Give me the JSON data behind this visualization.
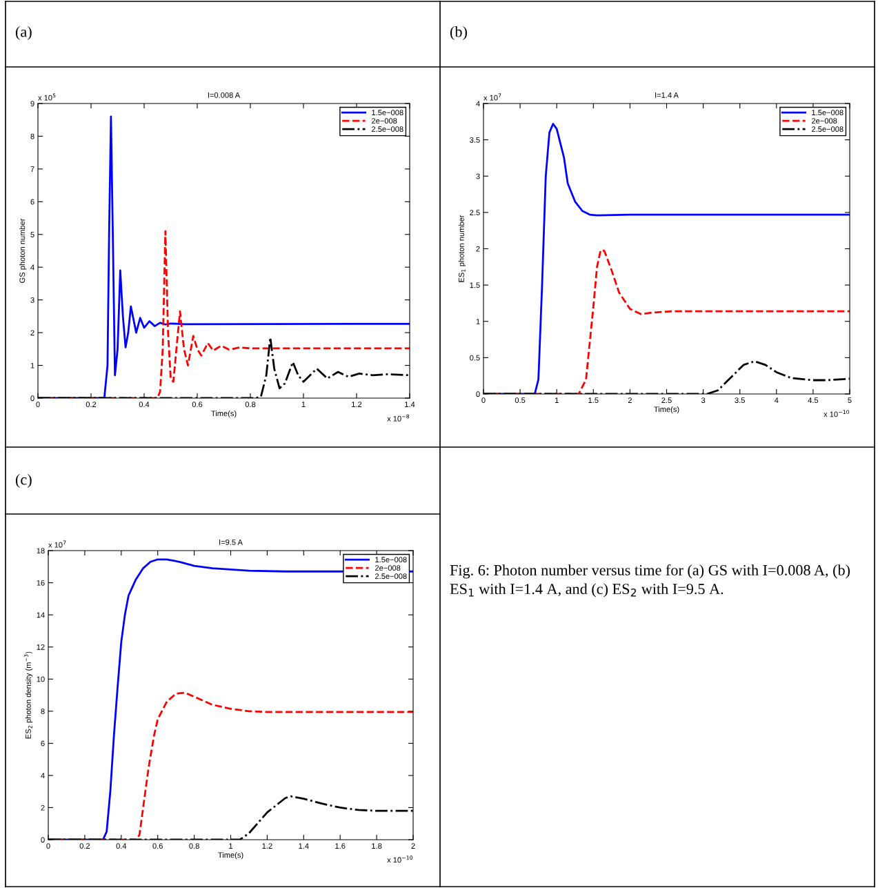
{
  "chart_data": [
    {
      "type": "line",
      "title": "I=0.008 A",
      "xlabel": "Time(s)",
      "ylabel": "GS photon number",
      "annotations": [
        "(a)",
        "x 10$^{5}$",
        "x 10$^{−8}$"
      ],
      "xlim": [
        0,
        1.4
      ],
      "xticks": [
        0,
        0.2,
        0.4,
        0.6,
        0.8,
        1,
        1.2,
        1.4
      ],
      "ylim": [
        0,
        9
      ],
      "yticks": [
        0,
        1,
        2,
        3,
        4,
        5,
        6,
        7,
        8,
        9
      ],
      "grid": false,
      "legend": "top right",
      "series": [
        {
          "name": "1.5e−008",
          "color": "#0000ff",
          "line_style": "solid",
          "x": [
            0,
            0.25,
            0.262,
            0.268,
            0.275,
            0.282,
            0.29,
            0.3,
            0.31,
            0.32,
            0.33,
            0.34,
            0.35,
            0.36,
            0.37,
            0.385,
            0.4,
            0.42,
            0.44,
            0.46,
            0.48,
            0.5,
            0.55,
            1.4
          ],
          "values": [
            0,
            0,
            1.0,
            5,
            8.6,
            5,
            0.7,
            1.5,
            3.9,
            2.5,
            1.55,
            2.0,
            2.8,
            2.4,
            2.0,
            2.45,
            2.15,
            2.35,
            2.2,
            2.3,
            2.25,
            2.28,
            2.26,
            2.27
          ]
        },
        {
          "name": "2e−008",
          "color": "#ff0000",
          "line_style": "dashed",
          "x": [
            0,
            0.45,
            0.46,
            0.47,
            0.48,
            0.49,
            0.5,
            0.51,
            0.525,
            0.535,
            0.55,
            0.565,
            0.585,
            0.6,
            0.615,
            0.64,
            0.66,
            0.69,
            0.72,
            0.76,
            0.8,
            1.4
          ],
          "values": [
            0,
            0,
            0.2,
            1.5,
            5.1,
            2.0,
            0.6,
            0.5,
            1.8,
            2.65,
            1.5,
            1.0,
            1.9,
            1.5,
            1.3,
            1.68,
            1.45,
            1.6,
            1.48,
            1.55,
            1.52,
            1.52
          ]
        },
        {
          "name": "2.5e−008",
          "color": "#000000",
          "line_style": "dashdot",
          "x": [
            0,
            0.82,
            0.84,
            0.86,
            0.875,
            0.89,
            0.91,
            0.93,
            0.96,
            0.98,
            1.0,
            1.05,
            1.09,
            1.13,
            1.17,
            1.21,
            1.26,
            1.32,
            1.4
          ],
          "values": [
            0,
            0,
            0.05,
            0.7,
            1.85,
            0.9,
            0.3,
            0.45,
            1.1,
            0.7,
            0.5,
            0.9,
            0.6,
            0.8,
            0.65,
            0.75,
            0.7,
            0.73,
            0.7
          ]
        }
      ]
    },
    {
      "type": "line",
      "title": "I=1.4 A",
      "xlabel": "Time(s)",
      "ylabel": "ES$_{1}$ photon number",
      "annotations": [
        "(b)",
        "x 10$^{7}$",
        "x 10$^{−10}$"
      ],
      "xlim": [
        0,
        5
      ],
      "xticks": [
        0,
        0.5,
        1,
        1.5,
        2,
        2.5,
        3,
        3.5,
        4,
        4.5,
        5
      ],
      "ylim": [
        0,
        4
      ],
      "yticks": [
        0,
        0.5,
        1,
        1.5,
        2,
        2.5,
        3,
        3.5,
        4
      ],
      "grid": false,
      "legend": "top right",
      "series": [
        {
          "name": "1.5e−008",
          "color": "#0000ff",
          "line_style": "solid",
          "x": [
            0,
            0.7,
            0.75,
            0.8,
            0.85,
            0.9,
            0.95,
            1.0,
            1.1,
            1.15,
            1.25,
            1.35,
            1.45,
            1.55,
            2.0,
            5
          ],
          "values": [
            0,
            0,
            0.2,
            1.5,
            3.0,
            3.6,
            3.72,
            3.65,
            3.25,
            2.9,
            2.65,
            2.52,
            2.47,
            2.46,
            2.47,
            2.47
          ]
        },
        {
          "name": "2e−008",
          "color": "#ff0000",
          "line_style": "dashed",
          "x": [
            0,
            1.3,
            1.4,
            1.5,
            1.55,
            1.6,
            1.65,
            1.75,
            1.85,
            2.0,
            2.15,
            2.3,
            2.6,
            5
          ],
          "values": [
            0,
            0,
            0.2,
            1.2,
            1.75,
            1.98,
            1.97,
            1.7,
            1.4,
            1.17,
            1.1,
            1.12,
            1.14,
            1.14
          ]
        },
        {
          "name": "2.5e−008",
          "color": "#000000",
          "line_style": "dashdot",
          "x": [
            0,
            3.05,
            3.2,
            3.4,
            3.55,
            3.7,
            3.85,
            4.0,
            4.2,
            4.5,
            4.7,
            5
          ],
          "values": [
            0,
            0,
            0.05,
            0.25,
            0.4,
            0.45,
            0.4,
            0.3,
            0.22,
            0.19,
            0.19,
            0.21
          ]
        }
      ]
    },
    {
      "type": "line",
      "title": "I=9.5 A",
      "xlabel": "Time(s)",
      "ylabel": "ES$_{2}$ photon density (m$^{−3}$)",
      "annotations": [
        "(c)",
        "x 10$^{7}$",
        "x 10$^{−10}$"
      ],
      "xlim": [
        0,
        2
      ],
      "xticks": [
        0,
        0.2,
        0.4,
        0.6,
        0.8,
        1,
        1.2,
        1.4,
        1.6,
        1.8,
        2
      ],
      "ylim": [
        0,
        18
      ],
      "yticks": [
        0,
        2,
        4,
        6,
        8,
        10,
        12,
        14,
        16,
        18
      ],
      "grid": false,
      "legend": "top right",
      "series": [
        {
          "name": "1.5e−008",
          "color": "#0000ff",
          "line_style": "solid",
          "x": [
            0,
            0.3,
            0.32,
            0.34,
            0.36,
            0.38,
            0.4,
            0.42,
            0.44,
            0.48,
            0.52,
            0.56,
            0.6,
            0.65,
            0.72,
            0.8,
            0.9,
            1.1,
            1.3,
            2
          ],
          "values": [
            0,
            0,
            0.5,
            3,
            6.5,
            9.5,
            12.3,
            14,
            15.2,
            16.2,
            16.9,
            17.3,
            17.45,
            17.45,
            17.3,
            17.05,
            16.9,
            16.75,
            16.7,
            16.7
          ]
        },
        {
          "name": "2e−008",
          "color": "#ff0000",
          "line_style": "dashed",
          "x": [
            0,
            0.48,
            0.5,
            0.52,
            0.55,
            0.58,
            0.6,
            0.65,
            0.7,
            0.75,
            0.8,
            0.9,
            1.0,
            1.1,
            1.2,
            2
          ],
          "values": [
            0,
            0,
            0.3,
            2.0,
            4.5,
            6.5,
            7.5,
            8.6,
            9.1,
            9.15,
            8.9,
            8.4,
            8.15,
            8.0,
            7.95,
            7.95
          ]
        },
        {
          "name": "2.5e−008",
          "color": "#000000",
          "line_style": "dashdot",
          "x": [
            0,
            1.05,
            1.1,
            1.2,
            1.3,
            1.33,
            1.4,
            1.5,
            1.6,
            1.7,
            1.8,
            2
          ],
          "values": [
            0,
            0,
            0.4,
            1.7,
            2.6,
            2.7,
            2.55,
            2.25,
            2.0,
            1.85,
            1.8,
            1.8
          ]
        }
      ]
    },
    {
      "type": "other",
      "annotations": [
        "Fig. 6: Photon number versus time for (a) GS with I=0.008 A, (b) ES$_{1}$ with I=1.4 A, and (c) ES$_{2}$ with I=9.5 A."
      ]
    }
  ]
}
